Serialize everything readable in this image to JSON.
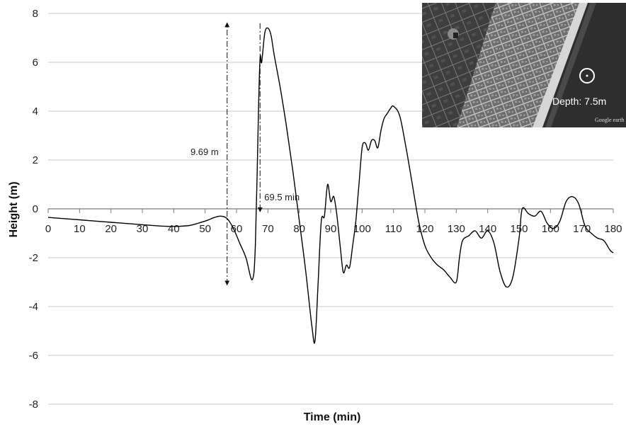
{
  "chart_data": {
    "type": "line",
    "xlabel": "Time (min)",
    "ylabel": "Height (m)",
    "xlim": [
      0,
      180
    ],
    "ylim": [
      -8,
      8
    ],
    "x_ticks": [
      0,
      10,
      20,
      30,
      40,
      50,
      60,
      70,
      80,
      90,
      100,
      110,
      120,
      130,
      140,
      150,
      160,
      170,
      180
    ],
    "y_ticks": [
      -8,
      -6,
      -4,
      -2,
      0,
      2,
      4,
      6,
      8
    ],
    "grid": "horizontal",
    "x_axis_position": "y=0",
    "series": [
      {
        "color": "#000000",
        "x": [
          0,
          5,
          10,
          15,
          20,
          25,
          30,
          35,
          40,
          45,
          50,
          53,
          55,
          57,
          59,
          61,
          63,
          65,
          66,
          67,
          67.5,
          68,
          69,
          70,
          71,
          72,
          74,
          76,
          78,
          80,
          82,
          84,
          85,
          86,
          87,
          88,
          89,
          90,
          91,
          92,
          93,
          94,
          95,
          96,
          97,
          98,
          99,
          100,
          101,
          102,
          103,
          104,
          105,
          106,
          107,
          108,
          109,
          110,
          112,
          114,
          116,
          118,
          120,
          122,
          124,
          126,
          128,
          130,
          131,
          132,
          134,
          136,
          138,
          140,
          142,
          144,
          146,
          148,
          150,
          151,
          153,
          155,
          157,
          159,
          161,
          163,
          165,
          167,
          169,
          171,
          173,
          175,
          177,
          179,
          180
        ],
        "values": [
          -0.35,
          -0.4,
          -0.45,
          -0.5,
          -0.55,
          -0.6,
          -0.65,
          -0.7,
          -0.72,
          -0.68,
          -0.5,
          -0.35,
          -0.3,
          -0.4,
          -0.8,
          -1.4,
          -2.0,
          -2.9,
          -1.5,
          4.0,
          6.2,
          6.0,
          7.2,
          7.4,
          7.1,
          6.3,
          4.9,
          3.3,
          1.5,
          -0.5,
          -2.5,
          -4.8,
          -5.4,
          -3.0,
          -0.5,
          -0.3,
          1.0,
          0.3,
          0.5,
          -0.3,
          -1.5,
          -2.6,
          -2.3,
          -2.4,
          -1.5,
          -0.5,
          1.0,
          2.5,
          2.7,
          2.4,
          2.8,
          2.8,
          2.5,
          3.2,
          3.7,
          3.9,
          4.1,
          4.2,
          3.8,
          2.5,
          1.0,
          -0.5,
          -1.5,
          -2.0,
          -2.3,
          -2.5,
          -2.8,
          -3.0,
          -2.0,
          -1.3,
          -1.1,
          -0.9,
          -1.2,
          -0.9,
          -1.4,
          -2.6,
          -3.2,
          -2.8,
          -1.2,
          0.0,
          -0.2,
          -0.3,
          -0.1,
          -0.6,
          -0.8,
          -0.5,
          0.3,
          0.5,
          0.2,
          -0.7,
          -1.0,
          -1.2,
          -1.3,
          -1.7,
          -1.8
        ]
      }
    ],
    "annotations": [
      {
        "text": "9.69 m",
        "type": "double-arrow",
        "x": 57,
        "from": -3.1,
        "to": 7.6
      },
      {
        "text": "69.5 min",
        "type": "arrow",
        "x": 67.5,
        "from": 7.6,
        "to": -0.1
      }
    ]
  },
  "inset": {
    "label": "Depth: 7.5m",
    "watermark": "Google earth",
    "image_desc": "satellite-coastline"
  }
}
